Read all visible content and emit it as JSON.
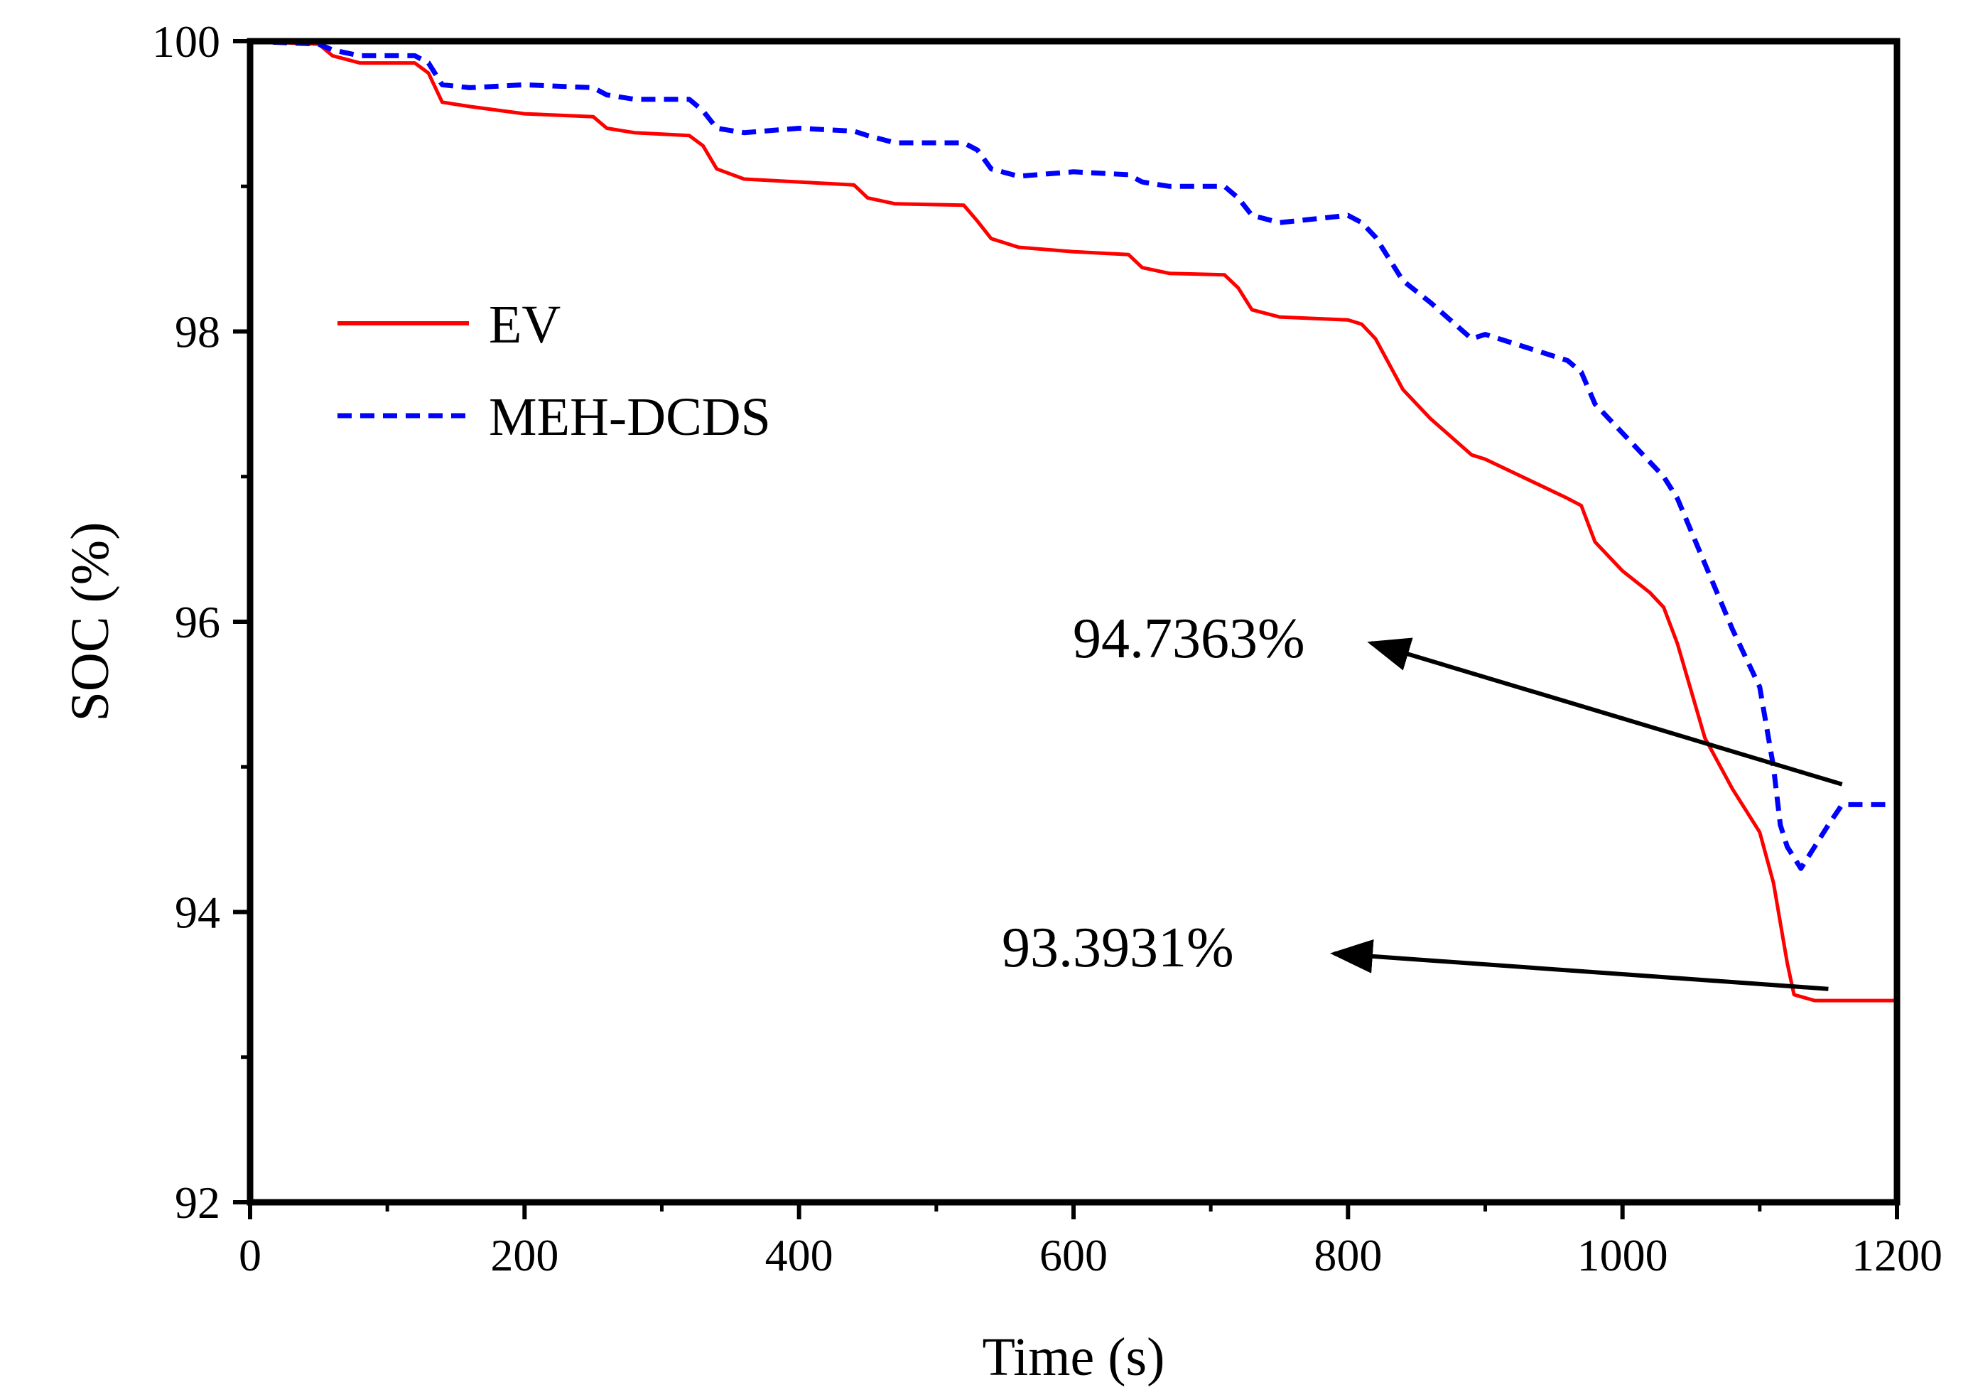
{
  "chart_data": {
    "type": "line",
    "title": "",
    "xlabel": "Time (s)",
    "ylabel": "SOC (%)",
    "xlim": [
      0,
      1200
    ],
    "ylim": [
      92,
      100
    ],
    "xticks": [
      0,
      200,
      400,
      600,
      800,
      1000,
      1200
    ],
    "yticks": [
      92,
      94,
      96,
      98,
      100
    ],
    "xtick_labels": [
      "0",
      "200",
      "400",
      "600",
      "800",
      "1000",
      "1200"
    ],
    "ytick_labels": [
      "92",
      "94",
      "96",
      "98",
      "100"
    ],
    "grid": false,
    "legend_position": "upper-left",
    "series": [
      {
        "name": "EV",
        "color": "#ff0000",
        "style": "solid",
        "x": [
          0,
          50,
          60,
          80,
          120,
          130,
          140,
          160,
          200,
          250,
          260,
          280,
          320,
          330,
          340,
          360,
          400,
          440,
          450,
          470,
          520,
          530,
          540,
          560,
          600,
          640,
          650,
          670,
          710,
          720,
          730,
          750,
          800,
          810,
          820,
          840,
          860,
          890,
          900,
          960,
          970,
          980,
          1000,
          1020,
          1030,
          1040,
          1060,
          1080,
          1100,
          1110,
          1120,
          1125,
          1140,
          1200
        ],
        "y": [
          100,
          99.98,
          99.9,
          99.85,
          99.85,
          99.78,
          99.58,
          99.55,
          99.5,
          99.48,
          99.4,
          99.37,
          99.35,
          99.28,
          99.12,
          99.05,
          99.03,
          99.01,
          98.92,
          98.88,
          98.87,
          98.76,
          98.64,
          98.58,
          98.55,
          98.53,
          98.44,
          98.4,
          98.39,
          98.3,
          98.15,
          98.1,
          98.08,
          98.05,
          97.95,
          97.6,
          97.4,
          97.15,
          97.12,
          96.85,
          96.8,
          96.55,
          96.35,
          96.2,
          96.1,
          95.85,
          95.2,
          94.85,
          94.55,
          94.2,
          93.65,
          93.43,
          93.39,
          93.39
        ]
      },
      {
        "name": "MEH-DCDS",
        "color": "#0000ff",
        "style": "dashed",
        "x": [
          0,
          50,
          60,
          80,
          120,
          130,
          140,
          160,
          200,
          250,
          260,
          280,
          320,
          330,
          340,
          360,
          400,
          440,
          450,
          470,
          520,
          530,
          540,
          560,
          600,
          640,
          650,
          670,
          710,
          720,
          730,
          750,
          800,
          810,
          820,
          840,
          860,
          890,
          900,
          960,
          970,
          980,
          1000,
          1020,
          1030,
          1040,
          1060,
          1080,
          1100,
          1110,
          1115,
          1120,
          1130,
          1150,
          1160,
          1200
        ],
        "y": [
          100,
          99.98,
          99.94,
          99.9,
          99.9,
          99.85,
          99.7,
          99.68,
          99.7,
          99.68,
          99.63,
          99.6,
          99.6,
          99.52,
          99.4,
          99.37,
          99.4,
          99.38,
          99.35,
          99.3,
          99.3,
          99.25,
          99.12,
          99.07,
          99.1,
          99.08,
          99.03,
          99.0,
          99.0,
          98.92,
          98.8,
          98.75,
          98.8,
          98.75,
          98.65,
          98.35,
          98.2,
          97.95,
          97.98,
          97.8,
          97.72,
          97.5,
          97.3,
          97.1,
          97.0,
          96.85,
          96.4,
          95.95,
          95.55,
          95.0,
          94.6,
          94.45,
          94.3,
          94.6,
          94.74,
          94.74
        ]
      }
    ],
    "annotations": [
      {
        "text": "94.7363%",
        "target": [
          1160,
          94.88
        ],
        "text_anchor": [
          800,
          95.9
        ]
      },
      {
        "text": "93.3931%",
        "target": [
          1150,
          93.47
        ],
        "text_anchor": [
          790,
          93.65
        ]
      }
    ]
  }
}
